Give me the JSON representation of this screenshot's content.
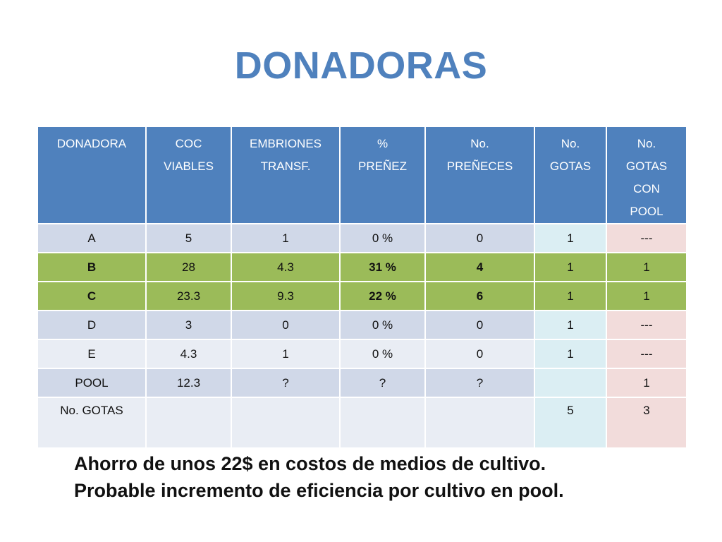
{
  "title": "DONADORAS",
  "table": {
    "headers": [
      [
        "DONADORA"
      ],
      [
        "COC",
        "VIABLES"
      ],
      [
        "EMBRIONES",
        "TRANSF."
      ],
      [
        "%",
        "PREÑEZ"
      ],
      [
        "No.",
        "PREÑECES"
      ],
      [
        "No.",
        "GOTAS"
      ],
      [
        "No.",
        "GOTAS",
        "CON",
        "POOL"
      ]
    ],
    "rows": [
      {
        "style": "odd",
        "bold": [],
        "cells": [
          "A",
          "5",
          "1",
          "0 %",
          "0",
          "1",
          "---"
        ]
      },
      {
        "style": "hl",
        "bold": [
          0,
          3,
          4
        ],
        "cells": [
          "B",
          "28",
          "4.3",
          "31 %",
          "4",
          "1",
          "1"
        ]
      },
      {
        "style": "hl",
        "bold": [
          0,
          3,
          4
        ],
        "cells": [
          "C",
          "23.3",
          "9.3",
          "22 %",
          "6",
          "1",
          "1"
        ]
      },
      {
        "style": "odd",
        "bold": [],
        "cells": [
          "D",
          "3",
          "0",
          "0 %",
          "0",
          "1",
          "---"
        ]
      },
      {
        "style": "even",
        "bold": [],
        "cells": [
          "E",
          "4.3",
          "1",
          "0 %",
          "0",
          "1",
          "---"
        ]
      },
      {
        "style": "odd",
        "bold": [],
        "cells": [
          "POOL",
          "12.3",
          "?",
          "?",
          "?",
          "",
          "1"
        ]
      },
      {
        "style": "even",
        "bold": [],
        "cells": [
          "No. GOTAS",
          "",
          "",
          "",
          "",
          "5",
          "3"
        ]
      }
    ]
  },
  "notes": [
    "Ahorro de unos 22$ en costos de medios de cultivo.",
    "Probable incremento de eficiencia por cultivo en pool."
  ],
  "colors": {
    "title": "#4f81bd",
    "header": "#4f81bd",
    "row_odd": "#d0d8e8",
    "row_even": "#e9edf4",
    "row_highlight": "#9bbb59",
    "gotas_column": "#dbeef3",
    "pool_column": "#f2dcdb"
  }
}
